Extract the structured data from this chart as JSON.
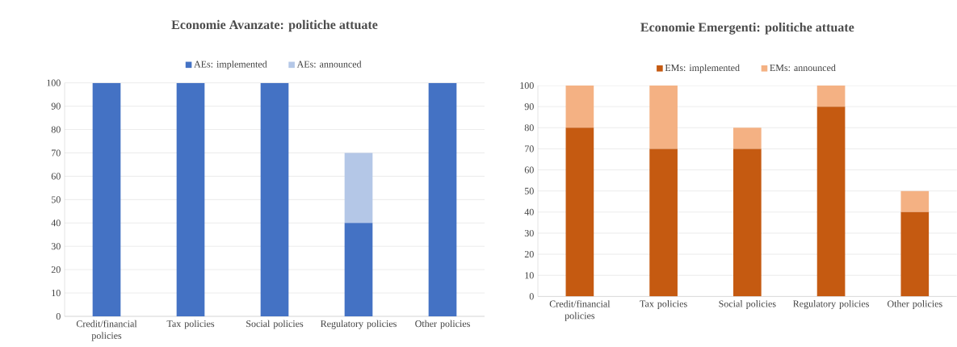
{
  "chart_data": [
    {
      "type": "bar",
      "title": "Economie Avanzate: politiche attuate",
      "categories": [
        "Credit/financial policies",
        "Tax policies",
        "Social policies",
        "Regulatory policies",
        "Other policies"
      ],
      "stacked": true,
      "series": [
        {
          "name": "AEs: implemented",
          "color": "#4472c4",
          "values": [
            100,
            100,
            100,
            40,
            100
          ]
        },
        {
          "name": "AEs: announced",
          "color": "#b4c7e7",
          "values": [
            0,
            0,
            0,
            30,
            0
          ]
        }
      ],
      "ylim": [
        0,
        100
      ],
      "yticks": [
        0,
        10,
        20,
        30,
        40,
        50,
        60,
        70,
        80,
        90,
        100
      ],
      "grid": "y",
      "legend": "top"
    },
    {
      "type": "bar",
      "title": "Economie Emergenti: politiche attuate",
      "categories": [
        "Credit/financial policies",
        "Tax policies",
        "Social policies",
        "Regulatory policies",
        "Other policies"
      ],
      "stacked": true,
      "series": [
        {
          "name": "EMs: implemented",
          "color": "#c55a11",
          "values": [
            80,
            70,
            70,
            90,
            40
          ]
        },
        {
          "name": "EMs: announced",
          "color": "#f4b183",
          "values": [
            20,
            30,
            10,
            10,
            10
          ]
        }
      ],
      "ylim": [
        0,
        100
      ],
      "yticks": [
        0,
        10,
        20,
        30,
        40,
        50,
        60,
        70,
        80,
        90,
        100
      ],
      "grid": "y",
      "legend": "top"
    }
  ]
}
